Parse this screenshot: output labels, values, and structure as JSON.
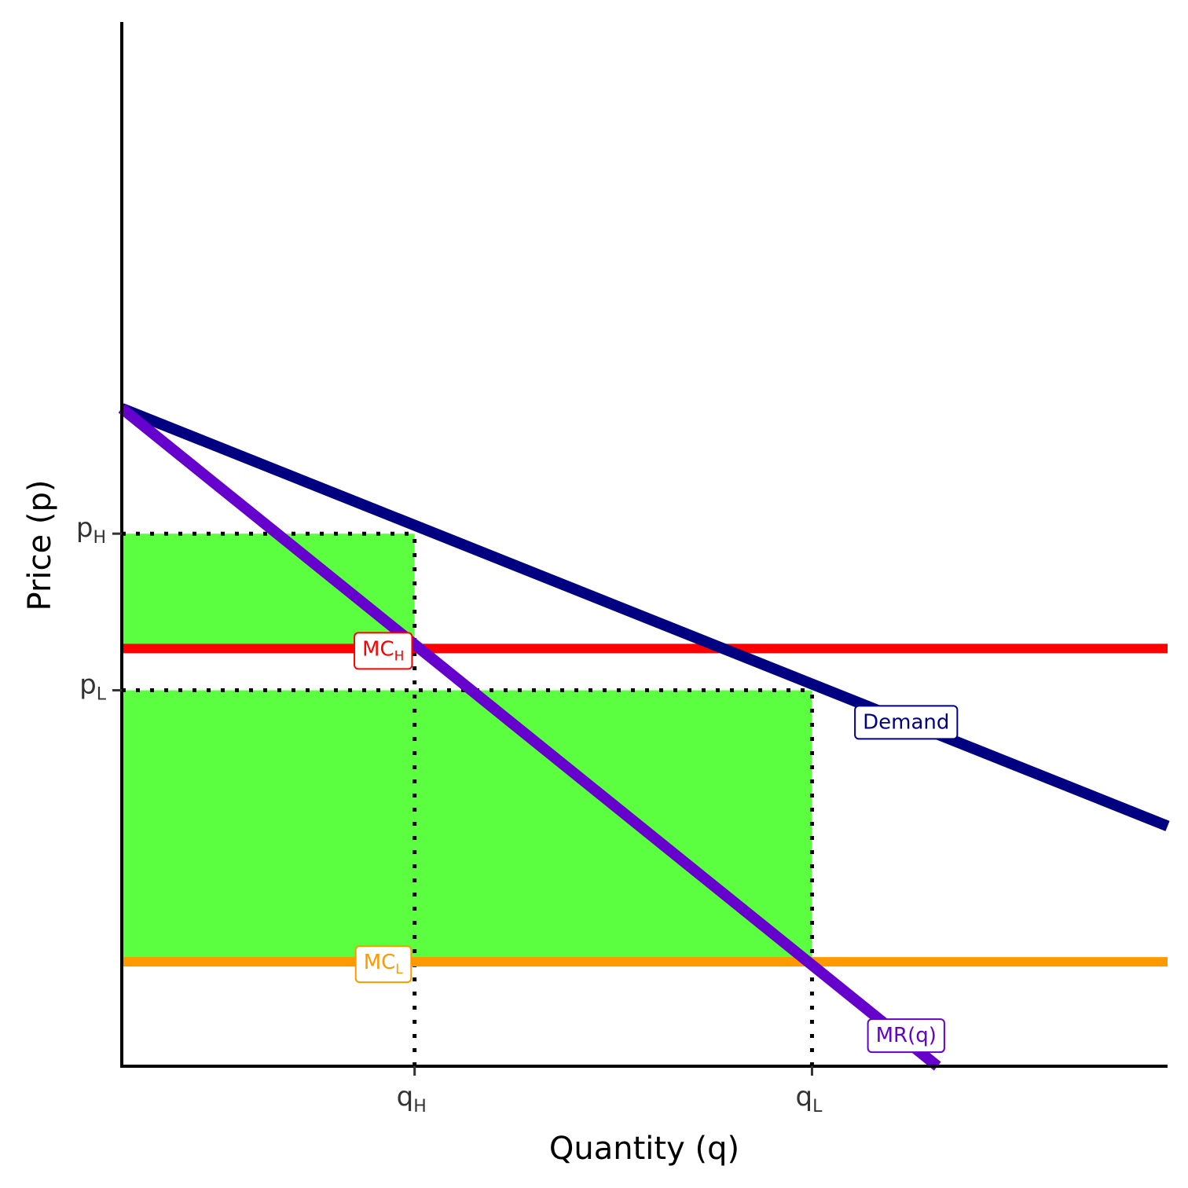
{
  "chart_data": {
    "type": "line",
    "xlabel": "Quantity (q)",
    "ylabel": "Price (p)",
    "xlim": [
      0,
      10
    ],
    "ylim": [
      0,
      10
    ],
    "grid": false,
    "lines": [
      {
        "name": "Demand",
        "color": "#000080",
        "x": [
          0,
          10
        ],
        "y": [
          6.3,
          2.3
        ]
      },
      {
        "name": "MR(q)",
        "color": "#6600cc",
        "x": [
          0,
          7.8
        ],
        "y": [
          6.3,
          0
        ]
      },
      {
        "name": "MC_H",
        "color": "#ff0000",
        "x": [
          0,
          10
        ],
        "y": [
          4,
          4
        ]
      },
      {
        "name": "MC_L",
        "color": "#ff9900",
        "x": [
          0,
          10
        ],
        "y": [
          1,
          1
        ]
      }
    ],
    "labels": [
      {
        "text": "MC",
        "sub": "H",
        "color": "#ff0000",
        "x": 2.5,
        "y": 4
      },
      {
        "text": "MC",
        "sub": "L",
        "color": "#ff9900",
        "x": 2.5,
        "y": 1
      },
      {
        "text": "Demand",
        "sub": "",
        "color": "#000080",
        "x": 7.5,
        "y": 3.3
      },
      {
        "text": "MR(q)",
        "sub": "",
        "color": "#6600cc",
        "x": 7.5,
        "y": 0.3
      }
    ],
    "xticks": [
      {
        "value": 2.8,
        "text": "q",
        "sub": "H"
      },
      {
        "value": 6.6,
        "text": "q",
        "sub": "L"
      }
    ],
    "yticks": [
      {
        "value": 5.1,
        "text": "p",
        "sub": "H"
      },
      {
        "value": 3.6,
        "text": "p",
        "sub": "L"
      }
    ],
    "shaded_areas": [
      {
        "color": "#5cff40",
        "x": [
          0,
          2.8
        ],
        "y": [
          4,
          5.1
        ]
      },
      {
        "color": "#5cff40",
        "x": [
          0,
          6.6
        ],
        "y": [
          1,
          3.6
        ]
      }
    ],
    "guides": [
      {
        "from": [
          0,
          5.1
        ],
        "to": [
          2.8,
          5.1
        ]
      },
      {
        "from": [
          2.8,
          0
        ],
        "to": [
          2.8,
          5.1
        ]
      },
      {
        "from": [
          0,
          3.6
        ],
        "to": [
          6.6,
          3.6
        ]
      },
      {
        "from": [
          6.6,
          0
        ],
        "to": [
          6.6,
          3.6
        ]
      }
    ]
  }
}
